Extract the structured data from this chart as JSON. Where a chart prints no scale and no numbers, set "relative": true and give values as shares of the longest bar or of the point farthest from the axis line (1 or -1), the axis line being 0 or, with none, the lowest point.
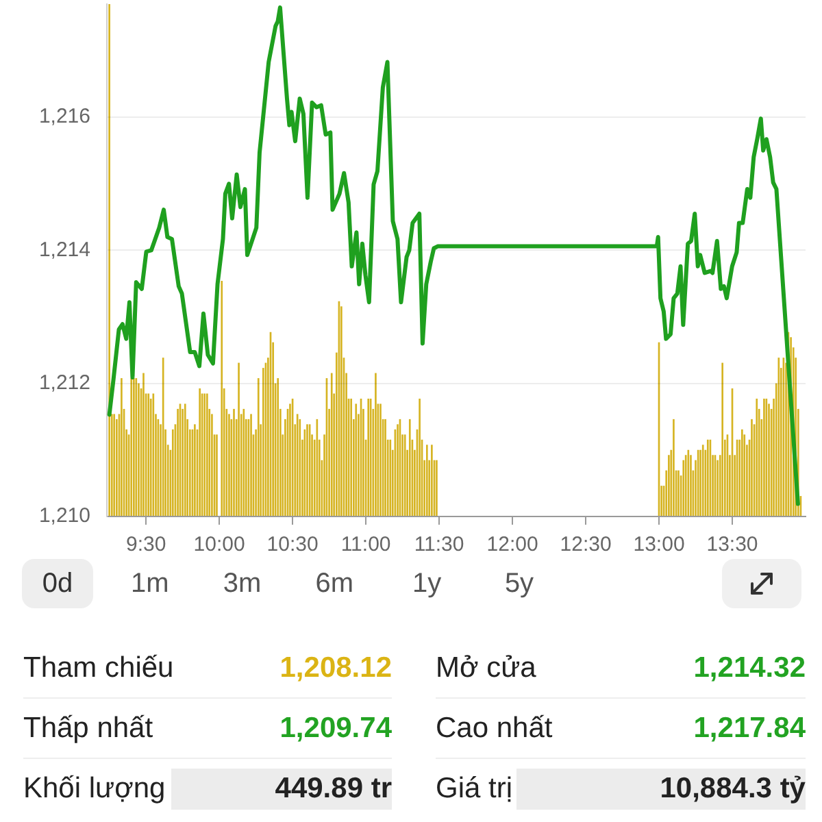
{
  "chart_data": [
    {
      "type": "line",
      "xlim": [
        9.233,
        14
      ],
      "xticks": [
        {
          "value": 9.5,
          "label": "9:30"
        },
        {
          "value": 10,
          "label": "10:00"
        },
        {
          "value": 10.5,
          "label": "10:30"
        },
        {
          "value": 11,
          "label": "11:00"
        },
        {
          "value": 11.5,
          "label": "11:30"
        },
        {
          "value": 12,
          "label": "12:00"
        },
        {
          "value": 12.5,
          "label": "12:30"
        },
        {
          "value": 13,
          "label": "13:00"
        },
        {
          "value": 13.5,
          "label": "13:30"
        }
      ],
      "ylim": [
        1210,
        1217.7
      ],
      "yticks": [
        {
          "value": 1210,
          "label": "1,210"
        },
        {
          "value": 1212,
          "label": "1,212"
        },
        {
          "value": 1214,
          "label": "1,214"
        },
        {
          "value": 1216,
          "label": "1,216"
        }
      ],
      "grid": "y",
      "color": "#1fa01f",
      "x": [
        9.25,
        9.278,
        9.315,
        9.34,
        9.365,
        9.387,
        9.408,
        9.433,
        9.471,
        9.502,
        9.536,
        9.59,
        9.621,
        9.646,
        9.677,
        9.723,
        9.745,
        9.801,
        9.833,
        9.864,
        9.892,
        9.922,
        9.957,
        9.988,
        10.025,
        10.041,
        10.066,
        10.088,
        10.119,
        10.144,
        10.175,
        10.191,
        10.253,
        10.275,
        10.337,
        10.384,
        10.399,
        10.415,
        10.462,
        10.478,
        10.493,
        10.518,
        10.549,
        10.574,
        10.602,
        10.633,
        10.664,
        10.695,
        10.726,
        10.758,
        10.773,
        10.82,
        10.851,
        10.882,
        10.904,
        10.936,
        10.954,
        10.976,
        10.997,
        11.022,
        11.053,
        11.079,
        11.116,
        11.147,
        11.184,
        11.216,
        11.24,
        11.278,
        11.296,
        11.319,
        11.365,
        11.387,
        11.412,
        11.443,
        11.464,
        11.49,
        12.985,
        12.994,
        13.01,
        13.032,
        13.048,
        13.079,
        13.1,
        13.125,
        13.147,
        13.165,
        13.197,
        13.219,
        13.244,
        13.265,
        13.281,
        13.312,
        13.352,
        13.365,
        13.396,
        13.422,
        13.443,
        13.462,
        13.499,
        13.53,
        13.546,
        13.571,
        13.602,
        13.623,
        13.646,
        13.67,
        13.695,
        13.711,
        13.733,
        13.758,
        13.779,
        13.801,
        13.948
      ],
      "values": [
        1211.53,
        1212.06,
        1212.81,
        1212.89,
        1212.67,
        1213.22,
        1212.09,
        1213.52,
        1213.42,
        1213.98,
        1214.0,
        1214.34,
        1214.61,
        1214.2,
        1214.17,
        1213.46,
        1213.35,
        1212.47,
        1212.47,
        1212.26,
        1213.05,
        1212.43,
        1212.3,
        1213.49,
        1214.17,
        1214.85,
        1215.0,
        1214.48,
        1215.14,
        1214.65,
        1214.92,
        1213.93,
        1214.34,
        1215.47,
        1216.83,
        1217.37,
        1217.44,
        1217.65,
        1216.28,
        1215.88,
        1216.08,
        1215.64,
        1216.28,
        1216.05,
        1214.79,
        1216.22,
        1216.15,
        1216.18,
        1215.74,
        1215.77,
        1214.61,
        1214.85,
        1215.16,
        1214.72,
        1213.76,
        1214.27,
        1213.49,
        1214.1,
        1213.63,
        1213.22,
        1214.99,
        1215.19,
        1216.45,
        1216.83,
        1214.44,
        1214.17,
        1213.22,
        1213.9,
        1214.0,
        1214.41,
        1214.55,
        1212.6,
        1213.49,
        1213.83,
        1214.03,
        1214.06,
        1214.06,
        1214.2,
        1213.28,
        1213.08,
        1212.67,
        1212.74,
        1213.28,
        1213.35,
        1213.76,
        1212.88,
        1214.1,
        1214.14,
        1214.55,
        1213.76,
        1213.93,
        1213.66,
        1213.69,
        1213.66,
        1214.14,
        1213.42,
        1213.46,
        1213.28,
        1213.76,
        1213.97,
        1214.41,
        1214.41,
        1214.92,
        1214.79,
        1215.4,
        1215.67,
        1215.98,
        1215.5,
        1215.67,
        1215.4,
        1215.02,
        1214.92,
        1210.19
      ]
    },
    {
      "type": "bar",
      "relative": true,
      "color": "#d6b422",
      "xlim": [
        9.233,
        14
      ],
      "tick_labels": false,
      "x": [
        9.25,
        9.267,
        9.283,
        9.3,
        9.317,
        9.333,
        9.35,
        9.367,
        9.383,
        9.4,
        9.417,
        9.433,
        9.45,
        9.467,
        9.483,
        9.5,
        9.517,
        9.533,
        9.55,
        9.567,
        9.583,
        9.6,
        9.617,
        9.633,
        9.65,
        9.667,
        9.683,
        9.7,
        9.717,
        9.733,
        9.75,
        9.767,
        9.783,
        9.8,
        9.817,
        9.833,
        9.85,
        9.867,
        9.883,
        9.9,
        9.917,
        9.933,
        9.95,
        9.967,
        9.983,
        10,
        10.017,
        10.033,
        10.05,
        10.067,
        10.083,
        10.1,
        10.117,
        10.133,
        10.15,
        10.167,
        10.183,
        10.2,
        10.217,
        10.233,
        10.25,
        10.267,
        10.283,
        10.3,
        10.317,
        10.333,
        10.35,
        10.367,
        10.383,
        10.4,
        10.417,
        10.433,
        10.45,
        10.467,
        10.483,
        10.5,
        10.517,
        10.533,
        10.55,
        10.567,
        10.583,
        10.6,
        10.617,
        10.633,
        10.65,
        10.667,
        10.683,
        10.7,
        10.717,
        10.733,
        10.75,
        10.767,
        10.783,
        10.8,
        10.817,
        10.833,
        10.85,
        10.867,
        10.883,
        10.9,
        10.917,
        10.933,
        10.95,
        10.967,
        10.983,
        11,
        11.017,
        11.033,
        11.05,
        11.067,
        11.083,
        11.1,
        11.117,
        11.133,
        11.15,
        11.167,
        11.183,
        11.2,
        11.217,
        11.233,
        11.25,
        11.267,
        11.283,
        11.3,
        11.317,
        11.333,
        11.35,
        11.367,
        11.383,
        11.4,
        11.417,
        11.433,
        11.45,
        11.467,
        11.483,
        13,
        13.017,
        13.033,
        13.05,
        13.067,
        13.083,
        13.1,
        13.117,
        13.133,
        13.15,
        13.167,
        13.183,
        13.2,
        13.217,
        13.233,
        13.25,
        13.267,
        13.283,
        13.3,
        13.317,
        13.333,
        13.35,
        13.367,
        13.383,
        13.4,
        13.417,
        13.433,
        13.45,
        13.467,
        13.483,
        13.5,
        13.517,
        13.533,
        13.55,
        13.567,
        13.583,
        13.6,
        13.617,
        13.633,
        13.65,
        13.667,
        13.683,
        13.7,
        13.717,
        13.733,
        13.75,
        13.767,
        13.783,
        13.8,
        13.817,
        13.833,
        13.85,
        13.867,
        13.883,
        13.9,
        13.917,
        13.933,
        13.95,
        13.967
      ],
      "values": [
        1,
        0.2,
        0.2,
        0.19,
        0.2,
        0.27,
        0.21,
        0.17,
        0.16,
        0.27,
        0.27,
        0.27,
        0.26,
        0.25,
        0.28,
        0.24,
        0.24,
        0.23,
        0.24,
        0.2,
        0.19,
        0.18,
        0.31,
        0.17,
        0.14,
        0.13,
        0.17,
        0.18,
        0.21,
        0.22,
        0.21,
        0.22,
        0.19,
        0.17,
        0.17,
        0.18,
        0.17,
        0.25,
        0.24,
        0.24,
        0.24,
        0.21,
        0.2,
        0.16,
        0.16,
        null,
        0.46,
        0.25,
        0.21,
        0.2,
        0.19,
        0.21,
        0.19,
        0.3,
        0.2,
        0.21,
        0.19,
        0.19,
        0.2,
        0.16,
        0.17,
        0.27,
        0.18,
        0.29,
        0.3,
        0.31,
        0.36,
        0.34,
        0.26,
        0.27,
        0.21,
        0.16,
        0.19,
        0.21,
        0.22,
        0.23,
        0.18,
        0.2,
        0.19,
        0.15,
        0.17,
        0.18,
        0.18,
        0.16,
        0.15,
        0.19,
        0.15,
        0.11,
        0.16,
        0.27,
        0.21,
        0.28,
        0.24,
        0.32,
        0.42,
        0.41,
        0.31,
        0.28,
        0.23,
        0.23,
        0.19,
        0.22,
        0.2,
        0.23,
        0.21,
        0.15,
        0.23,
        0.23,
        0.21,
        0.28,
        0.22,
        0.22,
        0.19,
        0.19,
        0.15,
        0.15,
        0.13,
        0.17,
        0.18,
        0.19,
        0.16,
        0.16,
        0.13,
        0.19,
        0.15,
        0.13,
        0.17,
        0.23,
        0.15,
        0.11,
        0.14,
        0.11,
        0.14,
        0.11,
        0.11,
        0.34,
        0.06,
        0.06,
        0.09,
        0.12,
        0.13,
        0.19,
        0.09,
        0.09,
        0.08,
        0.11,
        0.12,
        0.13,
        0.12,
        0.09,
        0.11,
        0.13,
        0.13,
        0.14,
        0.13,
        0.15,
        0.15,
        0.12,
        0.12,
        0.11,
        0.12,
        0.3,
        0.15,
        0.16,
        0.12,
        0.25,
        0.12,
        0.15,
        0.15,
        0.17,
        0.16,
        0.14,
        0.15,
        0.19,
        0.18,
        0.23,
        0.21,
        0.19,
        0.23,
        0.23,
        0.22,
        0.21,
        0.23,
        0.26,
        0.31,
        0.29,
        0.31,
        0.3,
        0.36,
        0.35,
        0.33,
        0.31,
        0.21,
        0.04
      ]
    },
    {
      "type": "other",
      "annotations": [
        "0d",
        "1m",
        "3m",
        "6m",
        "1y",
        "5y"
      ],
      "categories": [
        "Tham chiếu",
        "Mở cửa",
        "Thấp nhất",
        "Cao nhất",
        "Khối lượng",
        "Giá trị"
      ],
      "value_labels": [
        "1,208.12",
        "1,214.32",
        "1,209.74",
        "1,217.84",
        "449.89 tr",
        "10,884.3 tỷ"
      ],
      "colors": [
        "#dbb414",
        "#22a322",
        "#22a322",
        "#22a322",
        "#222222",
        "#222222"
      ]
    }
  ]
}
